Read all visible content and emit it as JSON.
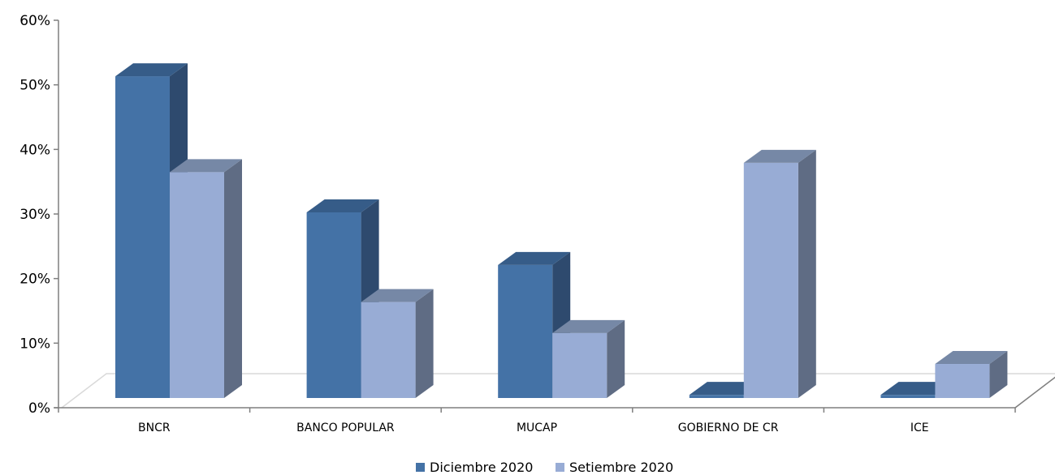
{
  "chart_data": {
    "type": "bar",
    "categories": [
      "BNCR",
      "BANCO POPULAR",
      "MUCAP",
      "GOBIERNO DE CR",
      "ICE"
    ],
    "series": [
      {
        "name": "Diciembre 2020",
        "values": [
          52,
          30,
          21.5,
          0.5,
          0.5
        ]
      },
      {
        "name": "Setiembre 2020",
        "values": [
          36.5,
          15.5,
          10.5,
          38,
          5.5
        ]
      }
    ],
    "ylim": [
      0,
      60
    ],
    "yticks": [
      "0%",
      "10%",
      "20%",
      "30%",
      "40%",
      "50%",
      "60%"
    ],
    "legend_position": "bottom",
    "three_d": true
  },
  "colors": {
    "series": [
      {
        "front": "#4472A6",
        "side": "#2E4A6E",
        "top": "#365C88"
      },
      {
        "front": "#98ACD5",
        "side": "#5F6C84",
        "top": "#7688A6"
      }
    ],
    "axis": "#7f7f7f",
    "floor": "#d9d9d9"
  }
}
